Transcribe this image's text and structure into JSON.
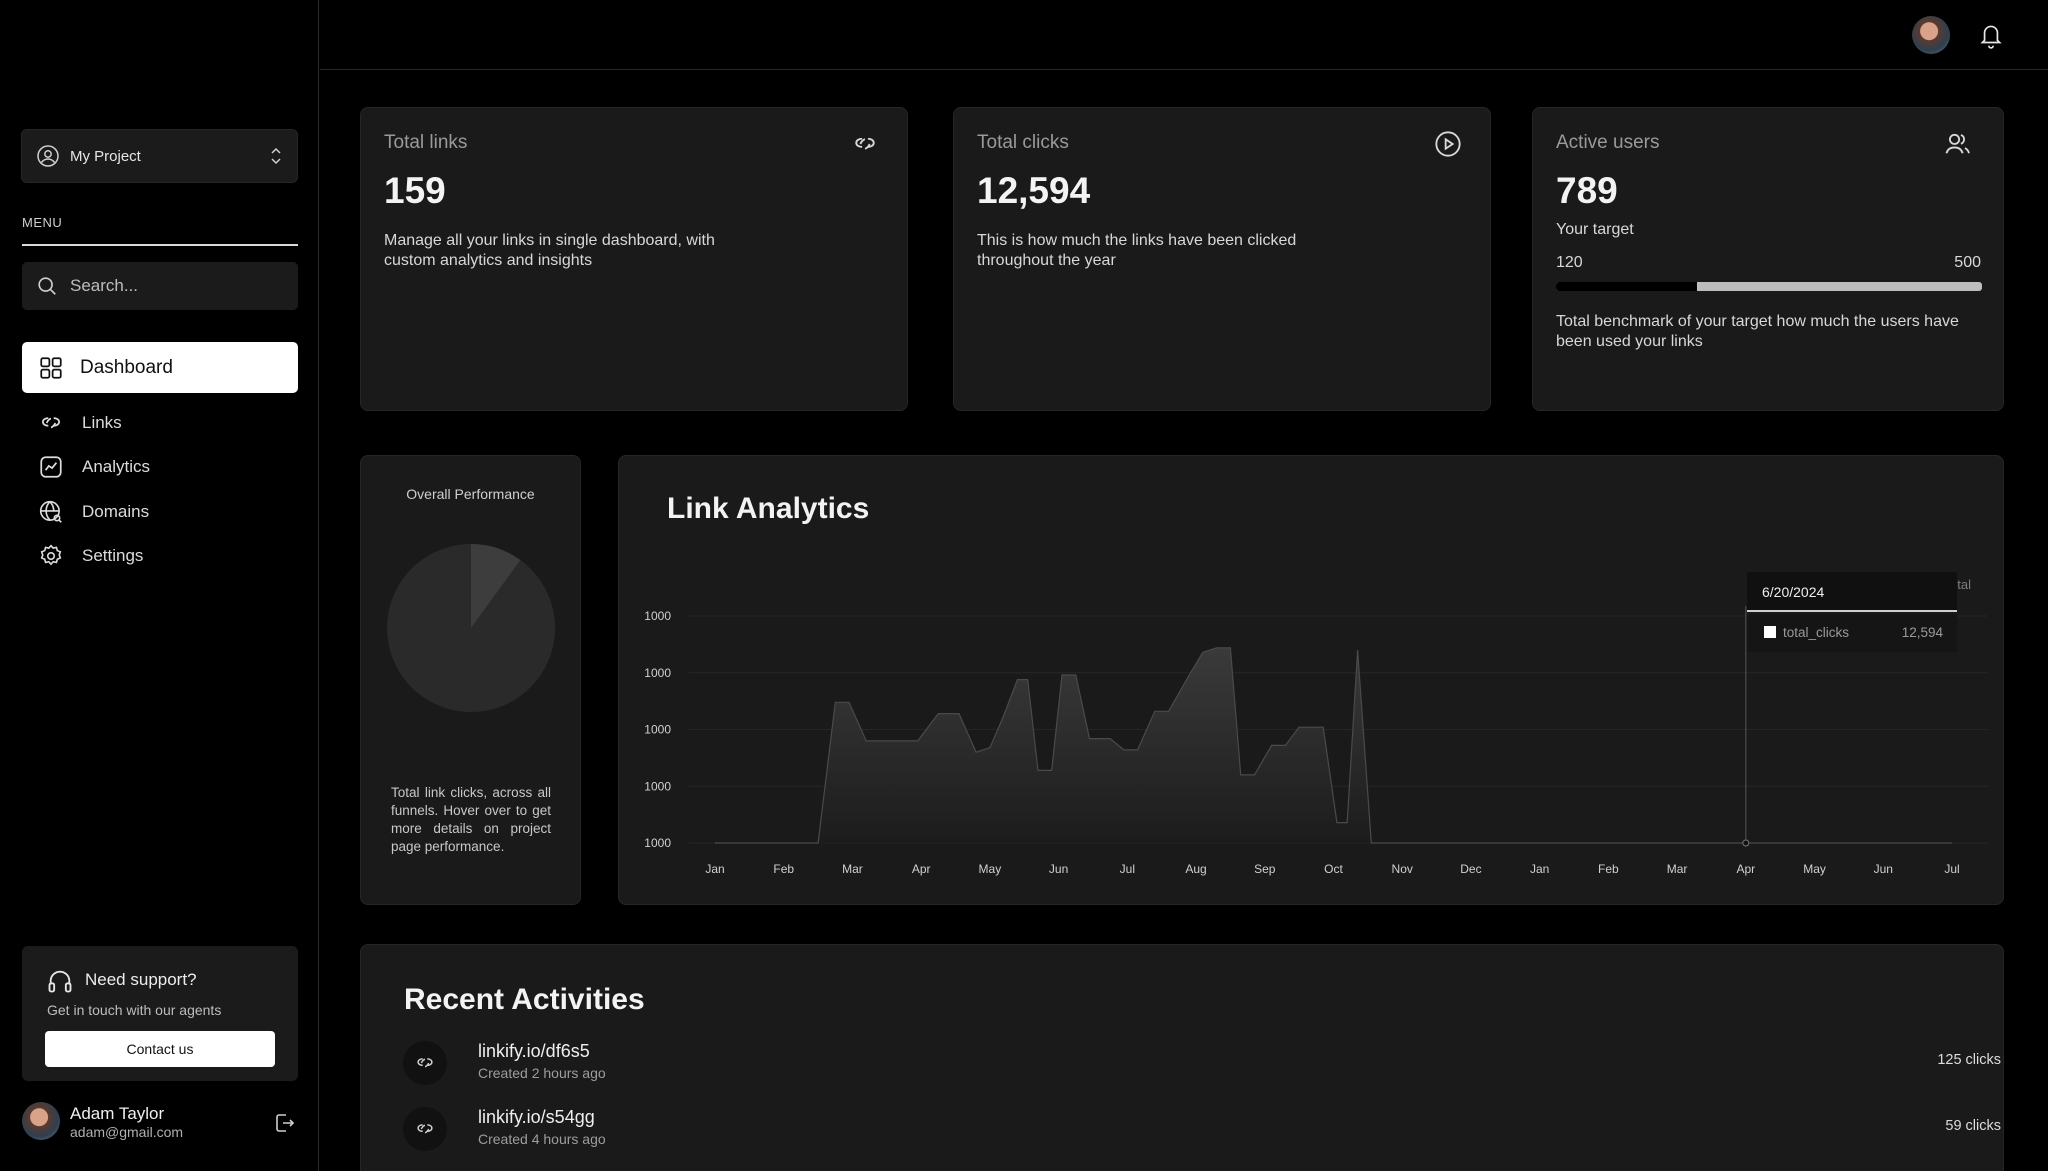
{
  "sidebar": {
    "project_name": "My Project",
    "menu_label": "MENU",
    "search_placeholder": "Search...",
    "nav": [
      {
        "label": "Dashboard",
        "icon": "grid-icon",
        "active": true
      },
      {
        "label": "Links",
        "icon": "link-icon"
      },
      {
        "label": "Analytics",
        "icon": "analytics-icon"
      },
      {
        "label": "Domains",
        "icon": "globe-icon"
      },
      {
        "label": "Settings",
        "icon": "gear-icon"
      }
    ],
    "support": {
      "title": "Need support?",
      "subtitle": "Get in touch with our agents",
      "button": "Contact us"
    },
    "user": {
      "name": "Adam Taylor",
      "email": "adam@gmail.com"
    }
  },
  "stats": {
    "total_links": {
      "title": "Total links",
      "value": "159",
      "description": "Manage all your links in single dashboard, with custom analytics and insights"
    },
    "total_clicks": {
      "title": "Total clicks",
      "value": "12,594",
      "description": "This is how much the links have been clicked throughout the year"
    },
    "active_users": {
      "title": "Active users",
      "value": "789",
      "target_label": "Your target",
      "target_min": "120",
      "target_max": "500",
      "progress_fraction": 0.33,
      "description": "Total benchmark of your target how much the users have been used your links"
    }
  },
  "performance": {
    "title": "Overall Performance",
    "description": "Total link clicks, across all funnels. Hover over to get more details on project page performance."
  },
  "link_analytics": {
    "title": "Link Analytics",
    "tooltip": {
      "date": "6/20/2024",
      "series": "total_clicks",
      "value": "12,594"
    },
    "legend_partial": "otal"
  },
  "chart_data": [
    {
      "type": "pie",
      "title": "Overall Performance",
      "values": [
        0.9,
        0.1
      ]
    },
    {
      "type": "area",
      "title": "Link Analytics",
      "y_tick_labels": [
        "1000",
        "1000",
        "1000",
        "1000",
        "1000"
      ],
      "ylim": [
        0,
        100
      ],
      "x_ticks": [
        "Jan",
        "Feb",
        "Mar",
        "Apr",
        "May",
        "Jun",
        "Jul",
        "Aug",
        "Sep",
        "Oct",
        "Nov",
        "Dec",
        "Jan",
        "Feb",
        "Mar",
        "Apr",
        "May",
        "Jun",
        "Jul"
      ],
      "series": [
        {
          "name": "total_clicks",
          "points": [
            [
              0,
              0
            ],
            [
              1.5,
              0
            ],
            [
              1.75,
              62
            ],
            [
              1.95,
              62
            ],
            [
              2.2,
              45
            ],
            [
              2.95,
              45
            ],
            [
              3.25,
              57
            ],
            [
              3.55,
              57
            ],
            [
              3.8,
              40
            ],
            [
              4.0,
              42
            ],
            [
              4.2,
              56
            ],
            [
              4.4,
              72
            ],
            [
              4.55,
              72
            ],
            [
              4.7,
              32
            ],
            [
              4.9,
              32
            ],
            [
              5.05,
              74
            ],
            [
              5.25,
              74
            ],
            [
              5.45,
              46
            ],
            [
              5.75,
              46
            ],
            [
              5.95,
              41
            ],
            [
              6.15,
              41
            ],
            [
              6.4,
              58
            ],
            [
              6.6,
              58
            ],
            [
              6.9,
              74
            ],
            [
              7.1,
              84
            ],
            [
              7.3,
              86
            ],
            [
              7.5,
              86
            ],
            [
              7.65,
              30
            ],
            [
              7.85,
              30
            ],
            [
              8.1,
              43
            ],
            [
              8.3,
              43
            ],
            [
              8.5,
              51
            ],
            [
              8.85,
              51
            ],
            [
              9.05,
              9
            ],
            [
              9.2,
              9
            ],
            [
              9.35,
              85
            ],
            [
              9.55,
              0
            ],
            [
              18,
              0
            ]
          ]
        }
      ]
    }
  ],
  "recent_activities": {
    "title": "Recent Activities",
    "items": [
      {
        "link": "linkify.io/df6s5",
        "created": "Created 2 hours ago",
        "clicks": "125 clicks"
      },
      {
        "link": "linkify.io/s54gg",
        "created": "Created 4 hours ago",
        "clicks": "59 clicks"
      }
    ]
  },
  "colors": {
    "background": "#000000",
    "card": "#1a1a1a",
    "accent": "#ffffff"
  }
}
